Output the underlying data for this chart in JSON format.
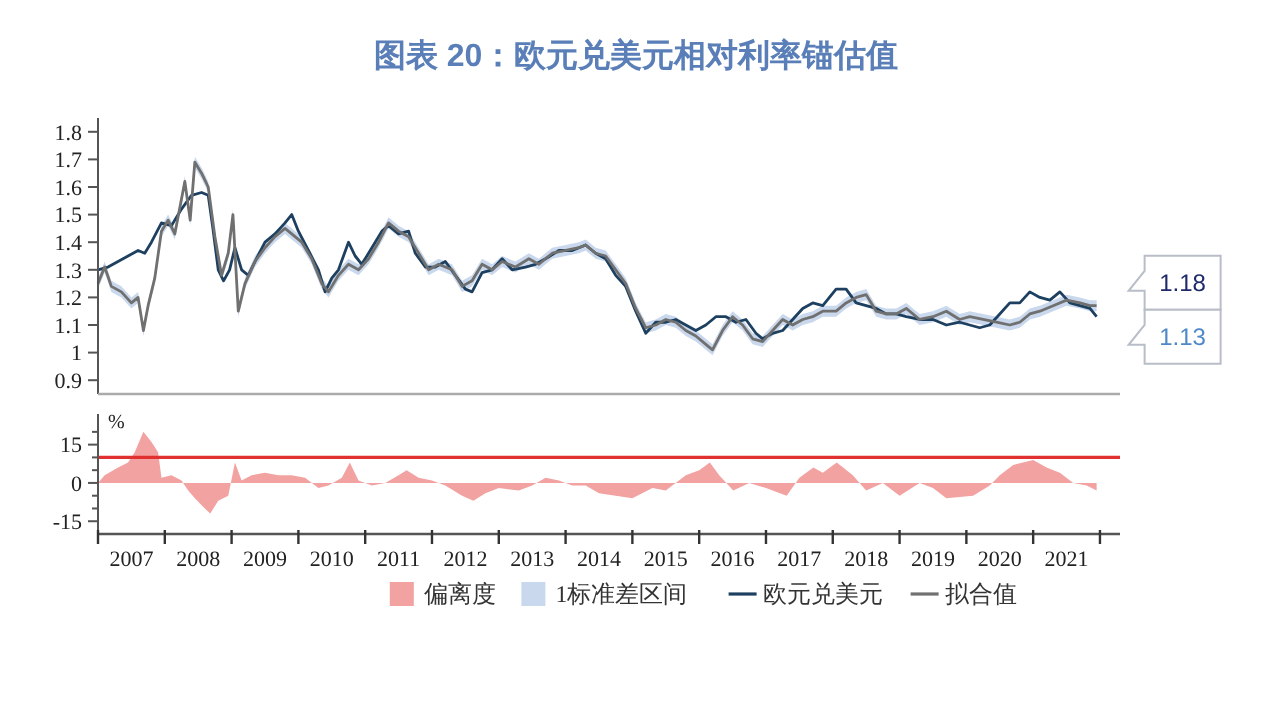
{
  "chart_data": [
    {
      "type": "line",
      "title": "图表 20：欧元兑美元相对利率锚估值",
      "xlim": [
        2007,
        2022.3
      ],
      "ylim": [
        0.85,
        1.85
      ],
      "yticks": [
        0.9,
        1.0,
        1.1,
        1.2,
        1.3,
        1.4,
        1.5,
        1.6,
        1.7,
        1.8
      ],
      "tick_labels": "y",
      "legend": "bottom",
      "grid": false,
      "series": [
        {
          "name": "1标准差区间",
          "type": "area",
          "color": "#c9d8ec",
          "x": [
            2007.0,
            2007.1,
            2007.2,
            2007.35,
            2007.5,
            2007.6,
            2007.68,
            2007.75,
            2007.85,
            2007.95,
            2008.05,
            2008.15,
            2008.3,
            2008.38,
            2008.45,
            2008.55,
            2008.65,
            2008.75,
            2008.85,
            2008.95,
            2009.02,
            2009.1,
            2009.2,
            2009.35,
            2009.5,
            2009.65,
            2009.8,
            2009.9,
            2010.05,
            2010.2,
            2010.35,
            2010.45,
            2010.6,
            2010.75,
            2010.9,
            2011.05,
            2011.2,
            2011.35,
            2011.5,
            2011.65,
            2011.8,
            2011.95,
            2012.1,
            2012.3,
            2012.45,
            2012.6,
            2012.75,
            2012.9,
            2013.05,
            2013.25,
            2013.45,
            2013.6,
            2013.8,
            2014.0,
            2014.2,
            2014.3,
            2014.45,
            2014.6,
            2014.75,
            2014.9,
            2015.05,
            2015.2,
            2015.35,
            2015.5,
            2015.65,
            2015.8,
            2015.95,
            2016.1,
            2016.2,
            2016.35,
            2016.5,
            2016.65,
            2016.8,
            2016.95,
            2017.1,
            2017.25,
            2017.4,
            2017.55,
            2017.7,
            2017.85,
            2018.05,
            2018.2,
            2018.35,
            2018.5,
            2018.65,
            2018.8,
            2018.95,
            2019.1,
            2019.3,
            2019.5,
            2019.7,
            2019.9,
            2020.05,
            2020.25,
            2020.45,
            2020.65,
            2020.8,
            2020.95,
            2021.1,
            2021.3,
            2021.5,
            2021.7,
            2021.85,
            2021.95
          ],
          "lower": [
            1.23,
            1.29,
            1.22,
            1.2,
            1.16,
            1.18,
            1.06,
            1.15,
            1.25,
            1.42,
            1.46,
            1.41,
            1.6,
            1.46,
            1.67,
            1.63,
            1.58,
            1.4,
            1.26,
            1.34,
            1.48,
            1.13,
            1.23,
            1.31,
            1.36,
            1.4,
            1.43,
            1.41,
            1.38,
            1.32,
            1.23,
            1.2,
            1.26,
            1.3,
            1.28,
            1.32,
            1.38,
            1.45,
            1.42,
            1.4,
            1.34,
            1.28,
            1.3,
            1.28,
            1.22,
            1.24,
            1.3,
            1.28,
            1.31,
            1.29,
            1.32,
            1.3,
            1.34,
            1.35,
            1.36,
            1.37,
            1.34,
            1.33,
            1.28,
            1.23,
            1.14,
            1.07,
            1.08,
            1.1,
            1.09,
            1.06,
            1.04,
            1.01,
            0.99,
            1.06,
            1.11,
            1.08,
            1.03,
            1.02,
            1.06,
            1.1,
            1.08,
            1.1,
            1.11,
            1.13,
            1.13,
            1.16,
            1.18,
            1.19,
            1.13,
            1.12,
            1.12,
            1.14,
            1.1,
            1.11,
            1.13,
            1.1,
            1.11,
            1.1,
            1.09,
            1.08,
            1.09,
            1.12,
            1.13,
            1.15,
            1.17,
            1.16,
            1.15,
            1.15
          ],
          "upper": [
            1.27,
            1.33,
            1.26,
            1.24,
            1.2,
            1.22,
            1.1,
            1.19,
            1.29,
            1.46,
            1.5,
            1.45,
            1.64,
            1.5,
            1.71,
            1.67,
            1.62,
            1.44,
            1.3,
            1.38,
            1.52,
            1.17,
            1.27,
            1.35,
            1.4,
            1.44,
            1.47,
            1.45,
            1.42,
            1.36,
            1.27,
            1.24,
            1.3,
            1.34,
            1.32,
            1.36,
            1.42,
            1.49,
            1.46,
            1.44,
            1.38,
            1.32,
            1.34,
            1.32,
            1.26,
            1.28,
            1.34,
            1.32,
            1.35,
            1.33,
            1.36,
            1.34,
            1.38,
            1.39,
            1.4,
            1.41,
            1.38,
            1.37,
            1.32,
            1.27,
            1.18,
            1.11,
            1.12,
            1.14,
            1.13,
            1.1,
            1.08,
            1.05,
            1.03,
            1.1,
            1.15,
            1.12,
            1.07,
            1.06,
            1.1,
            1.14,
            1.12,
            1.14,
            1.15,
            1.17,
            1.17,
            1.2,
            1.22,
            1.23,
            1.17,
            1.16,
            1.16,
            1.18,
            1.14,
            1.15,
            1.17,
            1.14,
            1.15,
            1.14,
            1.13,
            1.12,
            1.13,
            1.16,
            1.17,
            1.19,
            1.21,
            1.2,
            1.19,
            1.19
          ],
          "values": [
            null,
            null,
            null,
            null,
            null,
            null,
            null,
            null,
            null,
            null,
            null,
            null,
            null,
            null,
            null,
            null,
            null,
            null,
            null,
            null,
            null,
            null,
            null,
            null,
            null,
            null,
            null,
            null,
            null,
            null,
            null,
            null,
            null,
            null,
            null,
            null,
            null,
            null,
            null,
            null,
            null,
            null,
            null,
            null,
            null,
            null,
            null,
            null,
            null,
            null,
            null,
            null,
            null,
            null,
            null,
            null,
            null,
            null,
            null,
            null,
            null,
            null,
            null,
            null,
            null,
            null,
            null,
            null,
            null,
            null,
            null,
            null,
            null,
            null,
            null,
            null,
            null,
            null,
            null,
            null,
            null,
            null,
            null,
            null,
            null,
            null,
            null,
            null,
            null,
            null,
            null,
            null,
            null,
            null,
            null,
            null,
            null,
            null,
            null,
            null,
            null,
            null,
            null,
            null
          ]
        },
        {
          "name": "欧元兑美元",
          "color": "#1d4060",
          "x": [
            2007.0,
            2007.15,
            2007.3,
            2007.45,
            2007.6,
            2007.7,
            2007.8,
            2007.95,
            2008.1,
            2008.25,
            2008.4,
            2008.55,
            2008.65,
            2008.72,
            2008.8,
            2008.88,
            2008.97,
            2009.05,
            2009.15,
            2009.25,
            2009.35,
            2009.5,
            2009.65,
            2009.8,
            2009.9,
            2010.0,
            2010.15,
            2010.3,
            2010.4,
            2010.5,
            2010.6,
            2010.75,
            2010.85,
            2010.95,
            2011.1,
            2011.25,
            2011.35,
            2011.5,
            2011.65,
            2011.75,
            2011.9,
            2012.05,
            2012.2,
            2012.35,
            2012.5,
            2012.6,
            2012.75,
            2012.9,
            2013.05,
            2013.2,
            2013.4,
            2013.55,
            2013.7,
            2013.9,
            2014.1,
            2014.3,
            2014.45,
            2014.6,
            2014.75,
            2014.9,
            2015.05,
            2015.2,
            2015.35,
            2015.5,
            2015.65,
            2015.8,
            2015.95,
            2016.1,
            2016.25,
            2016.4,
            2016.55,
            2016.7,
            2016.85,
            2016.95,
            2017.1,
            2017.25,
            2017.4,
            2017.55,
            2017.7,
            2017.85,
            2018.05,
            2018.2,
            2018.35,
            2018.5,
            2018.65,
            2018.8,
            2018.95,
            2019.1,
            2019.3,
            2019.5,
            2019.7,
            2019.9,
            2020.05,
            2020.2,
            2020.35,
            2020.5,
            2020.65,
            2020.8,
            2020.95,
            2021.1,
            2021.25,
            2021.4,
            2021.55,
            2021.7,
            2021.85,
            2021.95
          ],
          "values": [
            1.3,
            1.31,
            1.33,
            1.35,
            1.37,
            1.36,
            1.4,
            1.47,
            1.46,
            1.52,
            1.57,
            1.58,
            1.57,
            1.45,
            1.3,
            1.26,
            1.3,
            1.38,
            1.3,
            1.28,
            1.33,
            1.4,
            1.43,
            1.47,
            1.5,
            1.44,
            1.37,
            1.3,
            1.22,
            1.27,
            1.3,
            1.4,
            1.35,
            1.32,
            1.38,
            1.44,
            1.46,
            1.43,
            1.44,
            1.36,
            1.31,
            1.31,
            1.33,
            1.28,
            1.23,
            1.22,
            1.29,
            1.3,
            1.34,
            1.3,
            1.31,
            1.32,
            1.34,
            1.37,
            1.37,
            1.39,
            1.36,
            1.34,
            1.28,
            1.24,
            1.15,
            1.07,
            1.11,
            1.11,
            1.12,
            1.1,
            1.08,
            1.1,
            1.13,
            1.13,
            1.11,
            1.12,
            1.07,
            1.05,
            1.07,
            1.08,
            1.12,
            1.16,
            1.18,
            1.17,
            1.23,
            1.23,
            1.18,
            1.17,
            1.16,
            1.14,
            1.14,
            1.13,
            1.12,
            1.12,
            1.1,
            1.11,
            1.1,
            1.09,
            1.1,
            1.14,
            1.18,
            1.18,
            1.22,
            1.2,
            1.19,
            1.22,
            1.18,
            1.17,
            1.16,
            1.13
          ]
        },
        {
          "name": "拟合值",
          "color": "#707070",
          "x": [
            2007.0,
            2007.1,
            2007.2,
            2007.35,
            2007.5,
            2007.6,
            2007.68,
            2007.75,
            2007.85,
            2007.95,
            2008.05,
            2008.15,
            2008.3,
            2008.38,
            2008.45,
            2008.55,
            2008.65,
            2008.75,
            2008.85,
            2008.95,
            2009.02,
            2009.1,
            2009.2,
            2009.35,
            2009.5,
            2009.65,
            2009.8,
            2009.9,
            2010.05,
            2010.2,
            2010.35,
            2010.45,
            2010.6,
            2010.75,
            2010.9,
            2011.05,
            2011.2,
            2011.35,
            2011.5,
            2011.65,
            2011.8,
            2011.95,
            2012.1,
            2012.3,
            2012.45,
            2012.6,
            2012.75,
            2012.9,
            2013.05,
            2013.25,
            2013.45,
            2013.6,
            2013.8,
            2014.0,
            2014.2,
            2014.3,
            2014.45,
            2014.6,
            2014.75,
            2014.9,
            2015.05,
            2015.2,
            2015.35,
            2015.5,
            2015.65,
            2015.8,
            2015.95,
            2016.1,
            2016.2,
            2016.35,
            2016.5,
            2016.65,
            2016.8,
            2016.95,
            2017.1,
            2017.25,
            2017.4,
            2017.55,
            2017.7,
            2017.85,
            2018.05,
            2018.2,
            2018.35,
            2018.5,
            2018.65,
            2018.8,
            2018.95,
            2019.1,
            2019.3,
            2019.5,
            2019.7,
            2019.9,
            2020.05,
            2020.25,
            2020.45,
            2020.65,
            2020.8,
            2020.95,
            2021.1,
            2021.3,
            2021.5,
            2021.7,
            2021.85,
            2021.95
          ],
          "values": [
            1.25,
            1.31,
            1.24,
            1.22,
            1.18,
            1.2,
            1.08,
            1.17,
            1.27,
            1.44,
            1.48,
            1.43,
            1.62,
            1.48,
            1.69,
            1.65,
            1.6,
            1.42,
            1.28,
            1.36,
            1.5,
            1.15,
            1.25,
            1.33,
            1.38,
            1.42,
            1.45,
            1.43,
            1.4,
            1.34,
            1.25,
            1.22,
            1.28,
            1.32,
            1.3,
            1.34,
            1.4,
            1.47,
            1.44,
            1.42,
            1.36,
            1.3,
            1.32,
            1.3,
            1.24,
            1.26,
            1.32,
            1.3,
            1.33,
            1.31,
            1.34,
            1.32,
            1.36,
            1.37,
            1.38,
            1.39,
            1.36,
            1.35,
            1.3,
            1.25,
            1.16,
            1.09,
            1.1,
            1.12,
            1.11,
            1.08,
            1.06,
            1.03,
            1.01,
            1.08,
            1.13,
            1.1,
            1.05,
            1.04,
            1.08,
            1.12,
            1.1,
            1.12,
            1.13,
            1.15,
            1.15,
            1.18,
            1.2,
            1.21,
            1.15,
            1.14,
            1.14,
            1.16,
            1.12,
            1.13,
            1.15,
            1.12,
            1.13,
            1.12,
            1.11,
            1.1,
            1.11,
            1.14,
            1.15,
            1.17,
            1.19,
            1.18,
            1.17,
            1.17
          ]
        }
      ],
      "annotations": [
        {
          "text": "1.18",
          "x": 2021.95,
          "y": 1.18
        },
        {
          "text": "1.13",
          "x": 2021.95,
          "y": 1.13
        }
      ]
    },
    {
      "type": "area",
      "ylabel": "%",
      "xlim": [
        2007,
        2022.3
      ],
      "ylim": [
        -20,
        27
      ],
      "yticks": [
        -15,
        {
          "value": -10,
          "label": null
        },
        {
          "value": -5,
          "label": null
        },
        0,
        {
          "value": 5,
          "label": null
        },
        {
          "value": 10,
          "label": null
        },
        15,
        {
          "value": 20,
          "label": null
        }
      ],
      "xticks": [
        {
          "value": 2007,
          "label": null
        },
        {
          "value": 2007.5,
          "label": "2007"
        },
        {
          "value": 2008,
          "label": null
        },
        {
          "value": 2008.5,
          "label": "2008"
        },
        {
          "value": 2009,
          "label": null
        },
        {
          "value": 2009.5,
          "label": "2009"
        },
        {
          "value": 2010,
          "label": null
        },
        {
          "value": 2010.5,
          "label": "2010"
        },
        {
          "value": 2011,
          "label": null
        },
        {
          "value": 2011.5,
          "label": "2011"
        },
        {
          "value": 2012,
          "label": null
        },
        {
          "value": 2012.5,
          "label": "2012"
        },
        {
          "value": 2013,
          "label": null
        },
        {
          "value": 2013.5,
          "label": "2013"
        },
        {
          "value": 2014,
          "label": null
        },
        {
          "value": 2014.5,
          "label": "2014"
        },
        {
          "value": 2015,
          "label": null
        },
        {
          "value": 2015.5,
          "label": "2015"
        },
        {
          "value": 2016,
          "label": null
        },
        {
          "value": 2016.5,
          "label": "2016"
        },
        {
          "value": 2017,
          "label": null
        },
        {
          "value": 2017.5,
          "label": "2017"
        },
        {
          "value": 2018,
          "label": null
        },
        {
          "value": 2018.5,
          "label": "2018"
        },
        {
          "value": 2019,
          "label": null
        },
        {
          "value": 2019.5,
          "label": "2019"
        },
        {
          "value": 2020,
          "label": null
        },
        {
          "value": 2020.5,
          "label": "2020"
        },
        {
          "value": 2021,
          "label": null
        },
        {
          "value": 2021.5,
          "label": "2021"
        },
        {
          "value": 2022,
          "label": null
        }
      ],
      "legend": "bottom",
      "grid": false,
      "ref_lines": [
        {
          "axis": "y",
          "value": 10,
          "color": "#e0302f"
        }
      ],
      "series": [
        {
          "name": "偏离度",
          "color": "#f2a2a0",
          "x": [
            2007.0,
            2007.1,
            2007.3,
            2007.45,
            2007.55,
            2007.68,
            2007.8,
            2007.9,
            2007.95,
            2008.1,
            2008.25,
            2008.35,
            2008.45,
            2008.6,
            2008.68,
            2008.8,
            2008.95,
            2009.05,
            2009.15,
            2009.3,
            2009.5,
            2009.7,
            2009.9,
            2010.1,
            2010.3,
            2010.45,
            2010.65,
            2010.77,
            2010.9,
            2011.1,
            2011.3,
            2011.5,
            2011.62,
            2011.8,
            2012.0,
            2012.2,
            2012.45,
            2012.62,
            2012.8,
            2013.0,
            2013.3,
            2013.5,
            2013.7,
            2013.9,
            2014.1,
            2014.3,
            2014.5,
            2015.0,
            2015.3,
            2015.5,
            2015.8,
            2016.0,
            2016.16,
            2016.3,
            2016.51,
            2016.75,
            2017.0,
            2017.31,
            2017.5,
            2017.71,
            2017.85,
            2018.06,
            2018.3,
            2018.5,
            2018.75,
            2019.0,
            2019.3,
            2019.5,
            2019.7,
            2020.1,
            2020.35,
            2020.5,
            2020.7,
            2021.0,
            2021.2,
            2021.4,
            2021.6,
            2021.8,
            2021.95
          ],
          "values": [
            0,
            3,
            6,
            8,
            12,
            20,
            16,
            12,
            2,
            3,
            1,
            -3,
            -6,
            -10,
            -12,
            -7,
            -5,
            8,
            1,
            3,
            4,
            3,
            3,
            2,
            -2,
            -1,
            2,
            8,
            1,
            -1,
            0,
            3,
            5,
            2,
            1,
            -1,
            -5,
            -7,
            -4,
            -2,
            -3,
            -1,
            2,
            1,
            -1,
            -1,
            -4,
            -6,
            -2,
            -3,
            3,
            5,
            8,
            3,
            -3,
            0,
            -2,
            -5,
            2,
            6,
            4,
            8,
            3,
            -3,
            0,
            -5,
            0,
            -2,
            -6,
            -5,
            -1,
            3,
            7,
            9,
            6,
            4,
            0,
            -1,
            -3
          ]
        }
      ]
    }
  ]
}
